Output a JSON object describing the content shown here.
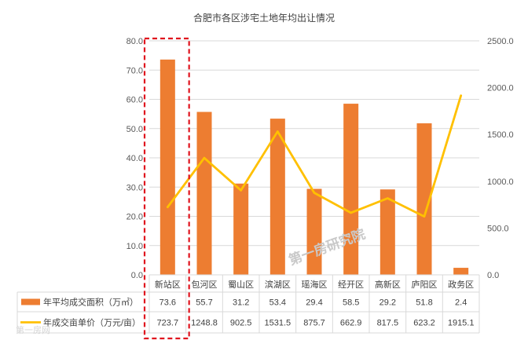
{
  "chart_data": {
    "type": "bar",
    "title": "合肥市各区涉宅土地年均出让情况",
    "categories": [
      "新站区",
      "包河区",
      "蜀山区",
      "滨湖区",
      "瑶海区",
      "经开区",
      "高新区",
      "庐阳区",
      "政务区"
    ],
    "series": [
      {
        "name": "年平均成交面积（万㎡）",
        "type": "bar",
        "axis": "left",
        "color": "#ed7d31",
        "values": [
          73.6,
          55.7,
          31.2,
          53.4,
          29.4,
          58.5,
          29.2,
          51.8,
          2.4
        ],
        "labels": [
          "73.6",
          "55.7",
          "31.2",
          "53.4",
          "29.4",
          "58.5",
          "29.2",
          "51.8",
          "2.4"
        ]
      },
      {
        "name": "年成交亩单价（万元/亩）",
        "type": "line",
        "axis": "right",
        "color": "#ffc000",
        "values": [
          723.7,
          1248.8,
          902.5,
          1531.5,
          875.7,
          662.9,
          817.5,
          623.2,
          1915.1
        ],
        "labels": [
          "723.7",
          "1248.8",
          "902.5",
          "1531.5",
          "875.7",
          "662.9",
          "817.5",
          "623.2",
          "1915.1"
        ]
      }
    ],
    "y_left": {
      "min": 0,
      "max": 80,
      "ticks": [
        "0.0",
        "10.0",
        "20.0",
        "30.0",
        "40.0",
        "50.0",
        "60.0",
        "70.0",
        "80.0"
      ]
    },
    "y_right": {
      "min": 0,
      "max": 2500,
      "ticks": [
        "0.0",
        "500.0",
        "1000.0",
        "1500.0",
        "2000.0",
        "2500.0"
      ]
    },
    "grid": true,
    "legend": "data-table",
    "highlight_category": "新站区"
  },
  "watermark": {
    "text": "第一房研究院",
    "corner_text": "第一房网"
  }
}
